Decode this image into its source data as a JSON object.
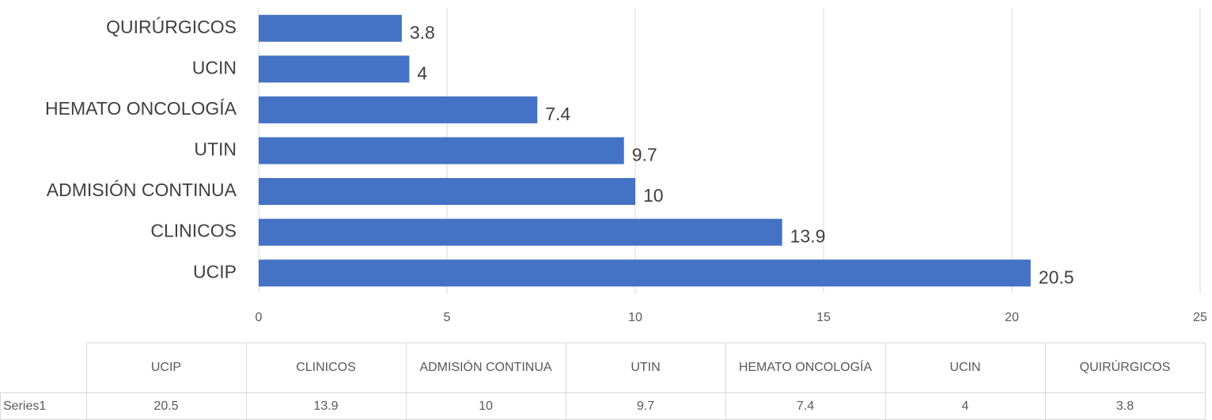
{
  "chart_data": {
    "type": "bar",
    "orientation": "horizontal",
    "categories": [
      "UCIP",
      "CLINICOS",
      "ADMISIÓN CONTINUA",
      "UTIN",
      "HEMATO ONCOLOGÍA",
      "UCIN",
      "QUIRÚRGICOS"
    ],
    "series": [
      {
        "name": "Series1",
        "color": "#4472c4",
        "values": [
          20.5,
          13.9,
          10,
          9.7,
          7.4,
          4,
          3.8
        ]
      }
    ],
    "xlim": [
      0,
      25
    ],
    "xticks": [
      0,
      5,
      10,
      15,
      20,
      25
    ],
    "grid": true,
    "data_table": true
  }
}
